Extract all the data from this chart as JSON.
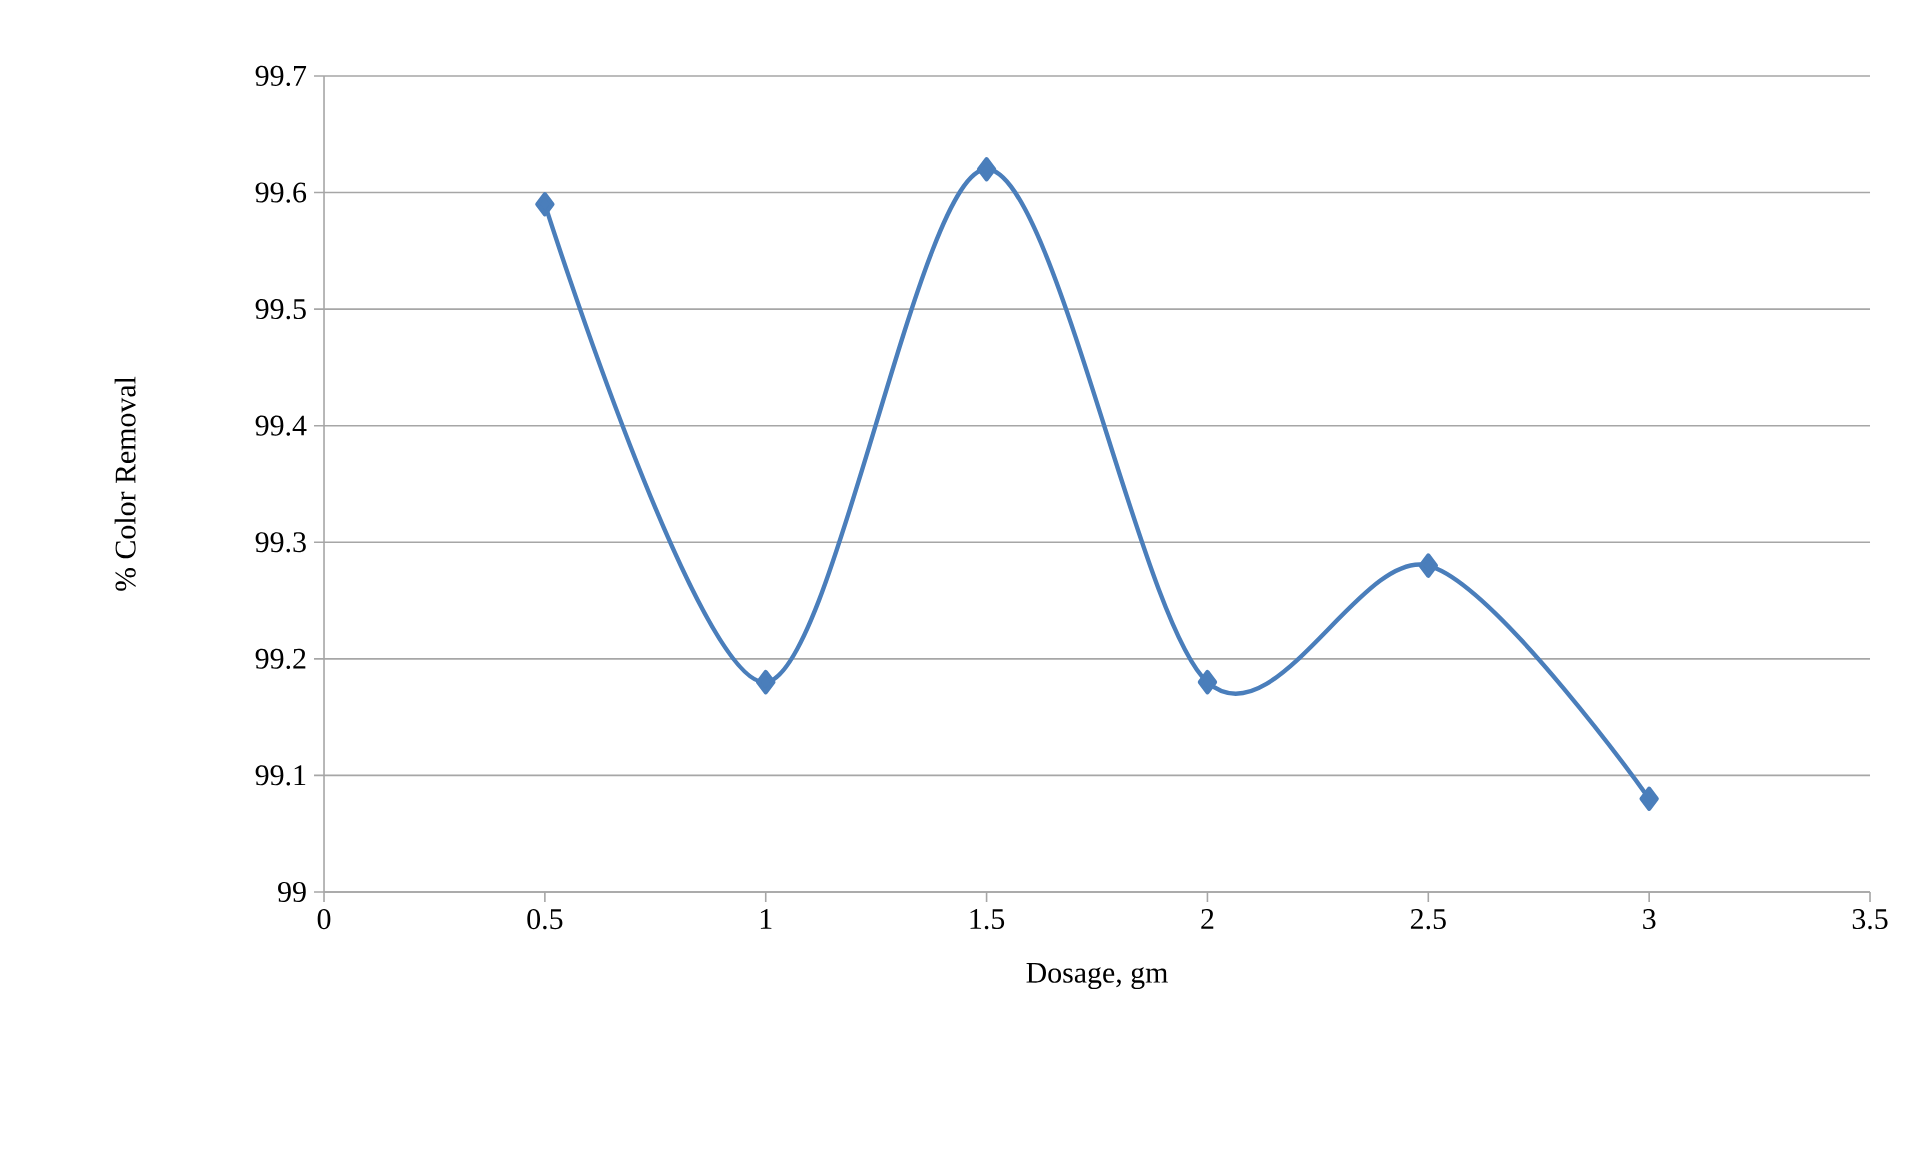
{
  "chart_data": {
    "type": "line",
    "xlabel": "Dosage, gm",
    "ylabel": "% Color Removal",
    "x": [
      0.5,
      1,
      1.5,
      2,
      2.5,
      3
    ],
    "series": [
      {
        "color": "#4a7ebb",
        "values": [
          99.59,
          99.18,
          99.62,
          99.18,
          99.28,
          99.08
        ]
      }
    ],
    "xlim": [
      0,
      3.5
    ],
    "ylim": [
      99,
      99.7
    ],
    "xticks": [
      0,
      0.5,
      1,
      1.5,
      2,
      2.5,
      3,
      3.5
    ],
    "yticks": [
      99,
      99.1,
      99.2,
      99.3,
      99.4,
      99.5,
      99.6,
      99.7
    ],
    "grid": "y",
    "marker": "diamond",
    "line_style": "solid"
  }
}
